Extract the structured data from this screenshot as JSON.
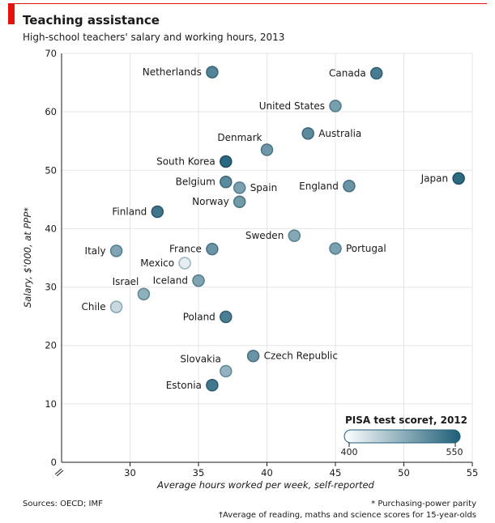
{
  "header": {
    "title": "Teaching assistance",
    "subtitle": "High-school teachers' salary and working hours, 2013"
  },
  "footer": {
    "sources": "Sources: OECD; IMF",
    "note1": "* Purchasing-power parity",
    "note2": "†Average of reading, maths and science scores for 15-year-olds"
  },
  "colors": {
    "accent_red": "#e3120b",
    "grid": "#e4e4e4",
    "axis": "#1a1a1a",
    "score_low": "#ffffff",
    "score_high": "#1e5f78"
  },
  "chart_data": {
    "type": "scatter",
    "xlabel": "Average hours worked per week, self-reported",
    "ylabel": "Salary, $'000, at PPP*",
    "xlim": [
      25,
      55
    ],
    "ylim": [
      0,
      70
    ],
    "x_ticks": [
      30,
      35,
      40,
      45,
      50,
      55
    ],
    "y_ticks": [
      0,
      10,
      20,
      30,
      40,
      50,
      60,
      70
    ],
    "grid": true,
    "color_scale": {
      "title": "PISA test score†, 2012",
      "min": 400,
      "max": 550,
      "min_label": "400",
      "max_label": "550"
    },
    "points": [
      {
        "name": "Netherlands",
        "x": 36,
        "y": 66.8,
        "score": 515,
        "label_side": "left"
      },
      {
        "name": "Canada",
        "x": 48,
        "y": 66.6,
        "score": 522,
        "label_side": "left"
      },
      {
        "name": "United States",
        "x": 45,
        "y": 61,
        "score": 490,
        "label_side": "left"
      },
      {
        "name": "Australia",
        "x": 43,
        "y": 56.3,
        "score": 510,
        "label_side": "right"
      },
      {
        "name": "Denmark",
        "x": 40,
        "y": 53.5,
        "score": 497,
        "label_side": "above-left"
      },
      {
        "name": "South Korea",
        "x": 37,
        "y": 51.5,
        "score": 541,
        "label_side": "left"
      },
      {
        "name": "Belgium",
        "x": 37,
        "y": 48,
        "score": 510,
        "label_side": "left"
      },
      {
        "name": "Spain",
        "x": 38,
        "y": 47,
        "score": 488,
        "label_side": "right"
      },
      {
        "name": "England",
        "x": 46,
        "y": 47.3,
        "score": 500,
        "label_side": "left"
      },
      {
        "name": "Japan",
        "x": 54,
        "y": 48.6,
        "score": 540,
        "label_side": "left"
      },
      {
        "name": "Norway",
        "x": 38,
        "y": 44.6,
        "score": 495,
        "label_side": "left"
      },
      {
        "name": "Finland",
        "x": 32,
        "y": 42.9,
        "score": 529,
        "label_side": "left"
      },
      {
        "name": "Sweden",
        "x": 42,
        "y": 38.8,
        "score": 482,
        "label_side": "left"
      },
      {
        "name": "France",
        "x": 36,
        "y": 36.5,
        "score": 499,
        "label_side": "left"
      },
      {
        "name": "Portugal",
        "x": 45,
        "y": 36.6,
        "score": 488,
        "label_side": "right"
      },
      {
        "name": "Italy",
        "x": 29,
        "y": 36.2,
        "score": 485,
        "label_side": "left"
      },
      {
        "name": "Mexico",
        "x": 34,
        "y": 34.1,
        "score": 417,
        "label_side": "left"
      },
      {
        "name": "Iceland",
        "x": 35,
        "y": 31.1,
        "score": 486,
        "label_side": "left"
      },
      {
        "name": "Israel",
        "x": 31,
        "y": 28.8,
        "score": 474,
        "label_side": "above-left"
      },
      {
        "name": "Chile",
        "x": 29,
        "y": 26.6,
        "score": 436,
        "label_side": "left"
      },
      {
        "name": "Poland",
        "x": 37,
        "y": 24.9,
        "score": 521,
        "label_side": "left"
      },
      {
        "name": "Czech Republic",
        "x": 39,
        "y": 18.2,
        "score": 500,
        "label_side": "right"
      },
      {
        "name": "Slovakia",
        "x": 37,
        "y": 15.6,
        "score": 472,
        "label_side": "above-left"
      },
      {
        "name": "Estonia",
        "x": 36,
        "y": 13.2,
        "score": 526,
        "label_side": "left"
      }
    ]
  }
}
